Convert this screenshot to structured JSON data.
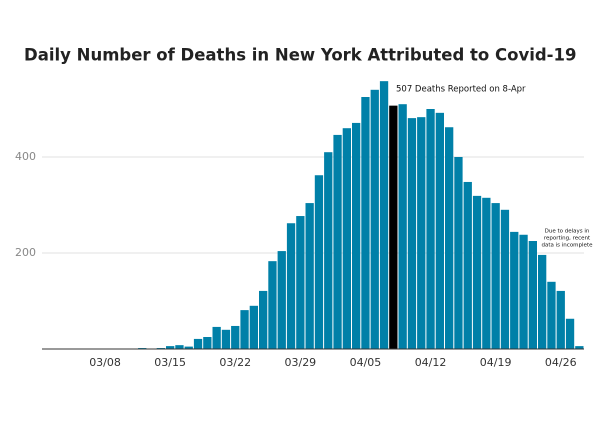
{
  "chart_data": {
    "type": "bar",
    "title": "Daily Number of Deaths in New York Attributed to Covid-19",
    "annotations": {
      "peak": "507 Deaths Reported on 8-Apr",
      "note": [
        "Due to delays in",
        "reporting, recent",
        "data is incomplete"
      ]
    },
    "categories": [
      null,
      null,
      null,
      null,
      null,
      null,
      "03/08",
      null,
      null,
      null,
      null,
      null,
      null,
      "03/15",
      null,
      null,
      null,
      null,
      null,
      null,
      "03/22",
      null,
      null,
      null,
      null,
      null,
      null,
      "03/29",
      null,
      null,
      null,
      null,
      null,
      null,
      "04/05",
      null,
      null,
      null,
      null,
      null,
      null,
      "04/12",
      null,
      null,
      null,
      null,
      null,
      null,
      "04/19",
      null,
      null,
      null,
      null,
      null,
      null,
      "04/26",
      null,
      null
    ],
    "values": [
      0,
      0,
      0,
      0,
      1,
      0,
      1,
      0,
      1,
      1,
      2,
      1,
      2,
      6,
      8,
      5,
      21,
      25,
      46,
      40,
      48,
      81,
      90,
      121,
      183,
      204,
      262,
      277,
      304,
      362,
      410,
      446,
      460,
      471,
      525,
      540,
      558,
      507,
      510,
      481,
      483,
      500,
      492,
      462,
      400,
      348,
      319,
      315,
      304,
      290,
      244,
      238,
      225,
      196,
      140,
      121,
      63,
      6
    ],
    "colors": [
      "#0080a8",
      "#0080a8",
      "#0080a8",
      "#0080a8",
      "#0080a8",
      "#0080a8",
      "#0080a8",
      "#0080a8",
      "#0080a8",
      "#0080a8",
      "#0080a8",
      "#0080a8",
      "#0080a8",
      "#0080a8",
      "#0080a8",
      "#0080a8",
      "#0080a8",
      "#0080a8",
      "#0080a8",
      "#0080a8",
      "#0080a8",
      "#0080a8",
      "#0080a8",
      "#0080a8",
      "#0080a8",
      "#0080a8",
      "#0080a8",
      "#0080a8",
      "#0080a8",
      "#0080a8",
      "#0080a8",
      "#0080a8",
      "#0080a8",
      "#0080a8",
      "#0080a8",
      "#0080a8",
      "#0080a8",
      "#000000",
      "#0080a8",
      "#0080a8",
      "#0080a8",
      "#0080a8",
      "#0080a8",
      "#0080a8",
      "#0080a8",
      "#0080a8",
      "#0080a8",
      "#0080a8",
      "#0080a8",
      "#0080a8",
      "#0080a8",
      "#0080a8",
      "#0080a8",
      "#0080a8",
      "#0080a8",
      "#0080a8",
      "#0080a8",
      "#0080a8"
    ],
    "ylim": [
      0,
      580
    ],
    "yticks": [
      200,
      400
    ],
    "grid": true
  }
}
